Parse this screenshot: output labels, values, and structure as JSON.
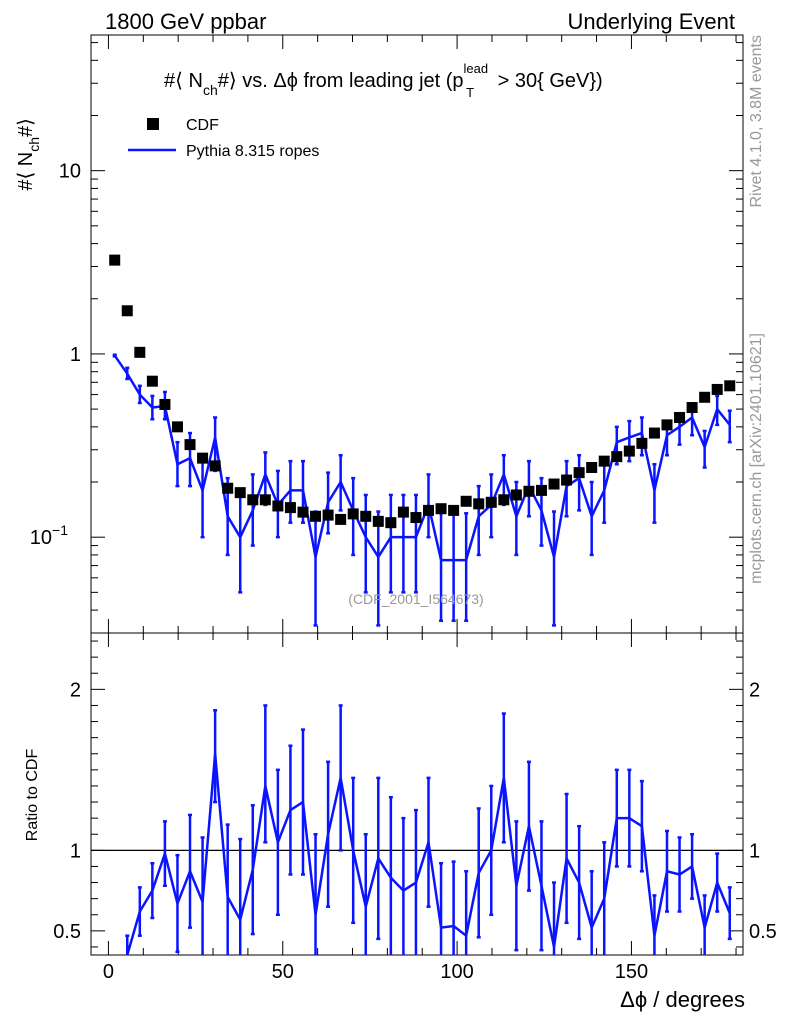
{
  "header": {
    "left": "1800 GeV ppbar",
    "right": "Underlying Event"
  },
  "side_labels": {
    "rivet": "Rivet 4.1.0,  3.8M events",
    "mcplots": "mcplots.cern.ch [arXiv:2401.10621]"
  },
  "colors": {
    "data": "#000000",
    "mc": "#0a14ff",
    "side": "#999999"
  },
  "chart_data": [
    {
      "type": "scatter",
      "panel": "main",
      "title_parts": {
        "pre": "#⟨ N",
        "sub1": "ch",
        "mid": "#⟩ vs. Δϕ from leading jet  (p",
        "sup": "lead",
        "sub2": "T",
        "post": " > 30{ GeV})"
      },
      "ylabel_parts": {
        "pre": "#⟨ N",
        "sub": "ch",
        "post": "#⟩"
      },
      "yscale": "log",
      "ylim": [
        0.03,
        55
      ],
      "xlim": [
        -5,
        182
      ],
      "yticks": [
        {
          "v": 10,
          "label": "10"
        },
        {
          "v": 1,
          "label": "1"
        },
        {
          "v": 0.1,
          "label": "10",
          "exp": "−1"
        }
      ],
      "watermark": "(CDF_2001_I564673)",
      "legend": [
        {
          "name": "CDF",
          "marker": "square"
        },
        {
          "name": "Pythia 8.315 ropes",
          "marker": "line"
        }
      ],
      "series": [
        {
          "name": "CDF",
          "x": [
            1.8,
            5.4,
            9,
            12.6,
            16.2,
            19.8,
            23.4,
            27,
            30.6,
            34.2,
            37.8,
            41.4,
            45,
            48.6,
            52.2,
            55.8,
            59.4,
            63,
            66.6,
            70.2,
            73.8,
            77.4,
            81,
            84.6,
            88.2,
            91.8,
            95.4,
            99,
            102.6,
            106.2,
            109.8,
            113.4,
            117,
            120.6,
            124.2,
            127.8,
            131.4,
            135,
            138.6,
            142.2,
            145.8,
            149.4,
            153,
            156.6,
            160.2,
            163.8,
            167.4,
            171,
            174.6,
            178.2
          ],
          "values": [
            3.25,
            1.72,
            1.02,
            0.71,
            0.53,
            0.4,
            0.32,
            0.27,
            0.245,
            0.185,
            0.175,
            0.16,
            0.16,
            0.148,
            0.145,
            0.137,
            0.13,
            0.132,
            0.125,
            0.134,
            0.13,
            0.122,
            0.12,
            0.137,
            0.128,
            0.14,
            0.143,
            0.14,
            0.157,
            0.152,
            0.155,
            0.16,
            0.17,
            0.178,
            0.18,
            0.195,
            0.205,
            0.225,
            0.24,
            0.26,
            0.275,
            0.295,
            0.325,
            0.37,
            0.41,
            0.45,
            0.51,
            0.58,
            0.64,
            0.67
          ]
        },
        {
          "name": "Pythia 8.315 ropes",
          "x": [
            1.8,
            5.4,
            9,
            12.6,
            16.2,
            19.8,
            23.4,
            27,
            30.6,
            34.2,
            37.8,
            41.4,
            45,
            48.6,
            52.2,
            55.8,
            59.4,
            63,
            66.6,
            70.2,
            73.8,
            77.4,
            81,
            84.6,
            88.2,
            91.8,
            95.4,
            99,
            102.6,
            106.2,
            109.8,
            113.4,
            117,
            120.6,
            124.2,
            127.8,
            131.4,
            135,
            138.6,
            142.2,
            145.8,
            149.4,
            153,
            156.6,
            160.2,
            163.8,
            167.4,
            171,
            174.6,
            178.2
          ],
          "values": [
            0.98,
            0.78,
            0.6,
            0.51,
            0.52,
            0.25,
            0.27,
            0.18,
            0.35,
            0.13,
            0.1,
            0.14,
            0.22,
            0.15,
            0.18,
            0.18,
            0.078,
            0.155,
            0.2,
            0.14,
            0.1,
            0.078,
            0.1,
            0.1,
            0.1,
            0.15,
            0.075,
            0.075,
            0.075,
            0.13,
            0.15,
            0.22,
            0.13,
            0.19,
            0.14,
            0.078,
            0.19,
            0.21,
            0.13,
            0.18,
            0.33,
            0.35,
            0.37,
            0.18,
            0.36,
            0.4,
            0.45,
            0.31,
            0.5,
            0.41
          ],
          "err_lo": [
            0.01,
            0.05,
            0.06,
            0.07,
            0.08,
            0.06,
            0.08,
            0.08,
            0.12,
            0.05,
            0.05,
            0.05,
            0.07,
            0.05,
            0.06,
            0.06,
            0.045,
            0.05,
            0.06,
            0.06,
            0.05,
            0.045,
            0.05,
            0.05,
            0.05,
            0.05,
            0.04,
            0.04,
            0.04,
            0.05,
            0.05,
            0.07,
            0.05,
            0.06,
            0.05,
            0.045,
            0.06,
            0.07,
            0.05,
            0.06,
            0.08,
            0.09,
            0.09,
            0.06,
            0.08,
            0.08,
            0.09,
            0.07,
            0.09,
            0.08
          ],
          "err_hi": [
            0.01,
            0.06,
            0.07,
            0.08,
            0.1,
            0.08,
            0.1,
            0.1,
            0.1,
            0.08,
            0.08,
            0.08,
            0.07,
            0.08,
            0.08,
            0.08,
            0.06,
            0.07,
            0.08,
            0.07,
            0.07,
            0.06,
            0.07,
            0.07,
            0.07,
            0.07,
            0.06,
            0.06,
            0.06,
            0.06,
            0.07,
            0.06,
            0.07,
            0.07,
            0.07,
            0.06,
            0.07,
            0.07,
            0.07,
            0.07,
            0.07,
            0.08,
            0.08,
            0.07,
            0.07,
            0.07,
            0.08,
            0.07,
            0.09,
            0.08
          ]
        }
      ]
    },
    {
      "type": "line",
      "panel": "ratio",
      "ylabel": "Ratio to CDF",
      "xlabel": "Δϕ / degrees",
      "ylim": [
        0.35,
        2.35
      ],
      "xlim": [
        -5,
        182
      ],
      "reference_line": 1,
      "xticks": [
        0,
        50,
        100,
        150
      ],
      "yticks": [
        {
          "v": 0.5,
          "label": "0.5"
        },
        {
          "v": 1,
          "label": "1"
        },
        {
          "v": 2,
          "label": "2"
        }
      ],
      "series": [
        {
          "name": "Pythia 8.315 ropes / CDF",
          "x": [
            5.4,
            9,
            12.6,
            16.2,
            19.8,
            23.4,
            27,
            30.6,
            34.2,
            37.8,
            41.4,
            45,
            48.6,
            52.2,
            55.8,
            59.4,
            63,
            66.6,
            70.2,
            73.8,
            77.4,
            81,
            84.6,
            88.2,
            91.8,
            95.4,
            99,
            102.6,
            106.2,
            109.8,
            113.4,
            117,
            120.6,
            124.2,
            127.8,
            131.4,
            135,
            138.6,
            142.2,
            145.8,
            149.4,
            153,
            156.6,
            160.2,
            163.8,
            167.4,
            171,
            174.6,
            178.2
          ],
          "values": [
            0.35,
            0.62,
            0.75,
            0.98,
            0.67,
            0.87,
            0.68,
            1.6,
            0.71,
            0.57,
            0.88,
            1.4,
            1.05,
            1.25,
            1.3,
            0.6,
            1.1,
            1.45,
            1.0,
            0.65,
            0.95,
            0.83,
            0.75,
            0.8,
            1.05,
            0.52,
            0.53,
            0.47,
            0.86,
            1.0,
            1.45,
            0.78,
            1.15,
            0.78,
            0.4,
            0.95,
            0.8,
            0.52,
            0.7,
            1.2,
            1.2,
            1.15,
            0.47,
            0.87,
            0.85,
            0.9,
            0.52,
            0.8,
            0.61
          ],
          "err_lo": [
            0.12,
            0.15,
            0.17,
            0.2,
            0.3,
            0.35,
            0.4,
            0.3,
            0.45,
            0.5,
            0.4,
            0.35,
            0.45,
            0.4,
            0.45,
            0.5,
            0.45,
            0.45,
            0.45,
            0.45,
            0.5,
            0.5,
            0.45,
            0.45,
            0.4,
            0.4,
            0.4,
            0.4,
            0.4,
            0.4,
            0.4,
            0.4,
            0.4,
            0.4,
            0.4,
            0.4,
            0.35,
            0.35,
            0.35,
            0.3,
            0.3,
            0.28,
            0.25,
            0.25,
            0.23,
            0.2,
            0.2,
            0.18,
            0.16
          ],
          "err_hi": [
            0.12,
            0.15,
            0.17,
            0.2,
            0.3,
            0.35,
            0.4,
            0.27,
            0.45,
            0.5,
            0.4,
            0.5,
            0.45,
            0.4,
            0.45,
            0.5,
            0.45,
            0.45,
            0.45,
            0.45,
            0.5,
            0.5,
            0.45,
            0.45,
            0.4,
            0.4,
            0.4,
            0.4,
            0.4,
            0.4,
            0.4,
            0.4,
            0.4,
            0.4,
            0.4,
            0.4,
            0.35,
            0.35,
            0.35,
            0.3,
            0.3,
            0.28,
            0.25,
            0.25,
            0.23,
            0.2,
            0.2,
            0.18,
            0.16
          ]
        }
      ]
    }
  ]
}
